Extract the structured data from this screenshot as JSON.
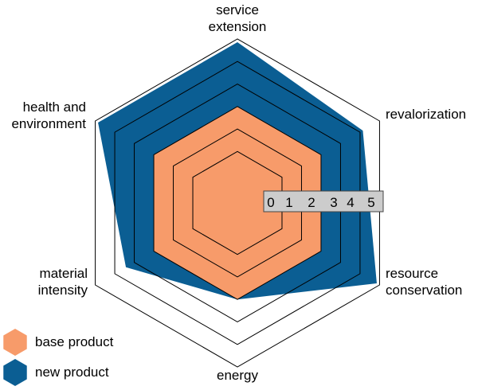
{
  "chart_data": {
    "type": "radar",
    "axes": [
      "service extension",
      "revalorization",
      "resource conservation",
      "energy",
      "material intensity",
      "health and environment"
    ],
    "scale_ticks": [
      "0",
      "1",
      "2",
      "3",
      "4",
      "5"
    ],
    "range": [
      0,
      5
    ],
    "series": [
      {
        "name": "base product",
        "color": "#f79b6a",
        "values": [
          3,
          3,
          3,
          3,
          3,
          3
        ]
      },
      {
        "name": "new product",
        "color": "#0b5e93",
        "values": [
          5,
          4.5,
          5,
          3,
          4,
          5
        ]
      }
    ],
    "legend_position": "bottom-left"
  }
}
